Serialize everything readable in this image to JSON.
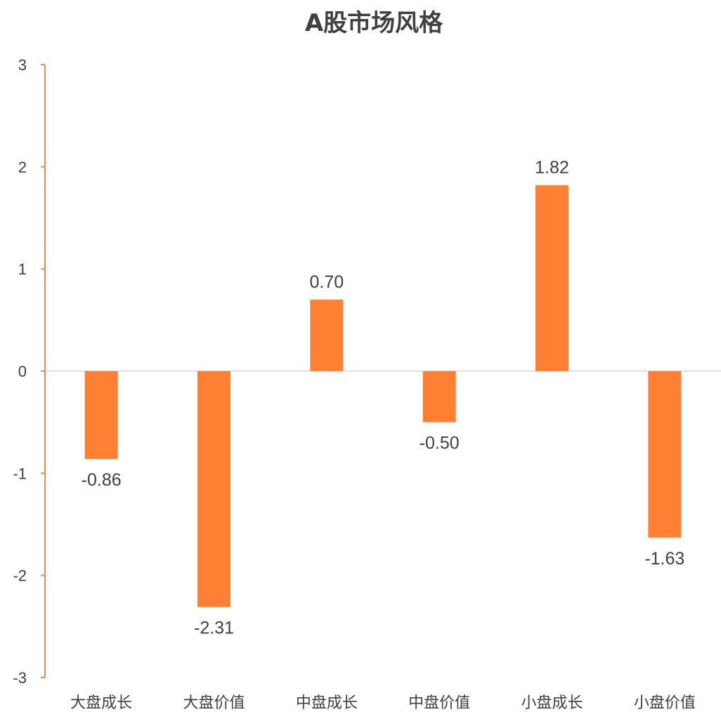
{
  "chart_data": {
    "type": "bar",
    "title": "A股市场风格",
    "xlabel": "",
    "ylabel": "",
    "categories": [
      "大盘成长",
      "大盘价值",
      "中盘成长",
      "中盘价值",
      "小盘成长",
      "小盘价值"
    ],
    "values": [
      -0.86,
      -2.31,
      0.7,
      -0.5,
      1.82,
      -1.63
    ],
    "data_labels": [
      "-0.86",
      "-2.31",
      "0.70",
      "-0.50",
      "1.82",
      "-1.63"
    ],
    "ylim": [
      -3,
      3
    ],
    "yticks": [
      3,
      2,
      1,
      0,
      -1,
      -2,
      -3
    ],
    "grid": false,
    "legend": "none",
    "colors": {
      "bar": "#FF7F33",
      "axis": "#F28A4A",
      "zero_line": "#D9D9D9",
      "text": "#404040"
    }
  }
}
